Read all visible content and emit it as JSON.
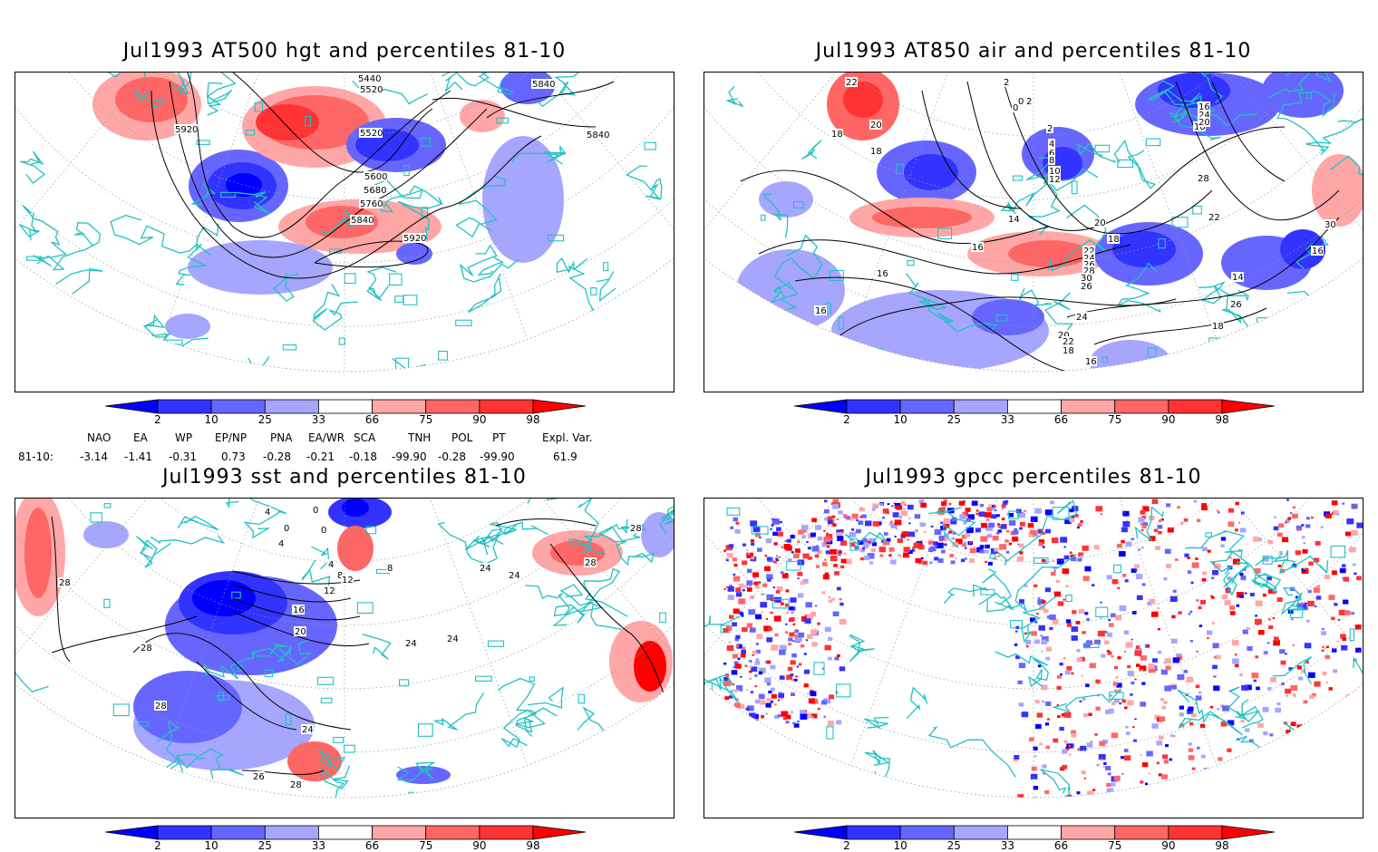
{
  "panels": [
    {
      "title": "Jul1993 AT500 hgt and percentiles 81-10",
      "contour_labels": [
        "5440",
        "5520",
        "5840",
        "5920",
        "5520",
        "5600",
        "5680",
        "5760",
        "5840",
        "5920",
        "5840"
      ]
    },
    {
      "title": "Jul1993 AT850 air and percentiles 81-10",
      "contour_labels": [
        "22",
        "20",
        "18",
        "18",
        "2",
        "0",
        "2",
        "0",
        "2",
        "4",
        "6",
        "8",
        "10",
        "12",
        "14",
        "16",
        "16",
        "16",
        "20",
        "18",
        "22",
        "24",
        "26",
        "28",
        "30",
        "26",
        "24",
        "20",
        "22",
        "18",
        "16",
        "18",
        "16",
        "24",
        "20",
        "22",
        "28",
        "30",
        "16",
        "14",
        "26",
        "18",
        "16",
        "18"
      ]
    },
    {
      "title": "Jul1993 sst and percentiles 81-10",
      "contour_labels": [
        "28",
        "28",
        "4",
        "0",
        "0",
        "0",
        "4",
        "4",
        "8",
        "12",
        "8",
        "12",
        "16",
        "20",
        "24",
        "24",
        "24",
        "24",
        "28",
        "28",
        "28",
        "26",
        "28",
        "24"
      ]
    },
    {
      "title": "Jul1993 gpcc percentiles 81-10",
      "contour_labels": []
    }
  ],
  "colorbar": {
    "labels": [
      "2",
      "10",
      "25",
      "33",
      "66",
      "75",
      "90",
      "98"
    ],
    "colors": [
      "#0000ff",
      "#3333ff",
      "#6666ff",
      "#a6a6ff",
      "#ffffff",
      "#ffa6a6",
      "#ff6666",
      "#ff3333",
      "#ff0000"
    ]
  },
  "teleconnections": {
    "names": [
      "NAO",
      "EA",
      "WP",
      "EP/NP",
      "PNA",
      "EA/WR",
      "SCA",
      "TNH",
      "POL",
      "PT",
      "Expl. Var."
    ],
    "row_label": "81-10:",
    "values": [
      "-3.14",
      "-1.41",
      "-0.31",
      "0.73",
      "-0.28",
      "-0.21",
      "-0.18",
      "-99.90",
      "-0.28",
      "-99.90",
      "61.9"
    ]
  },
  "colors": {
    "coast": "#22c1c3",
    "grid": "#9a9a9a",
    "contour": "#000000"
  }
}
